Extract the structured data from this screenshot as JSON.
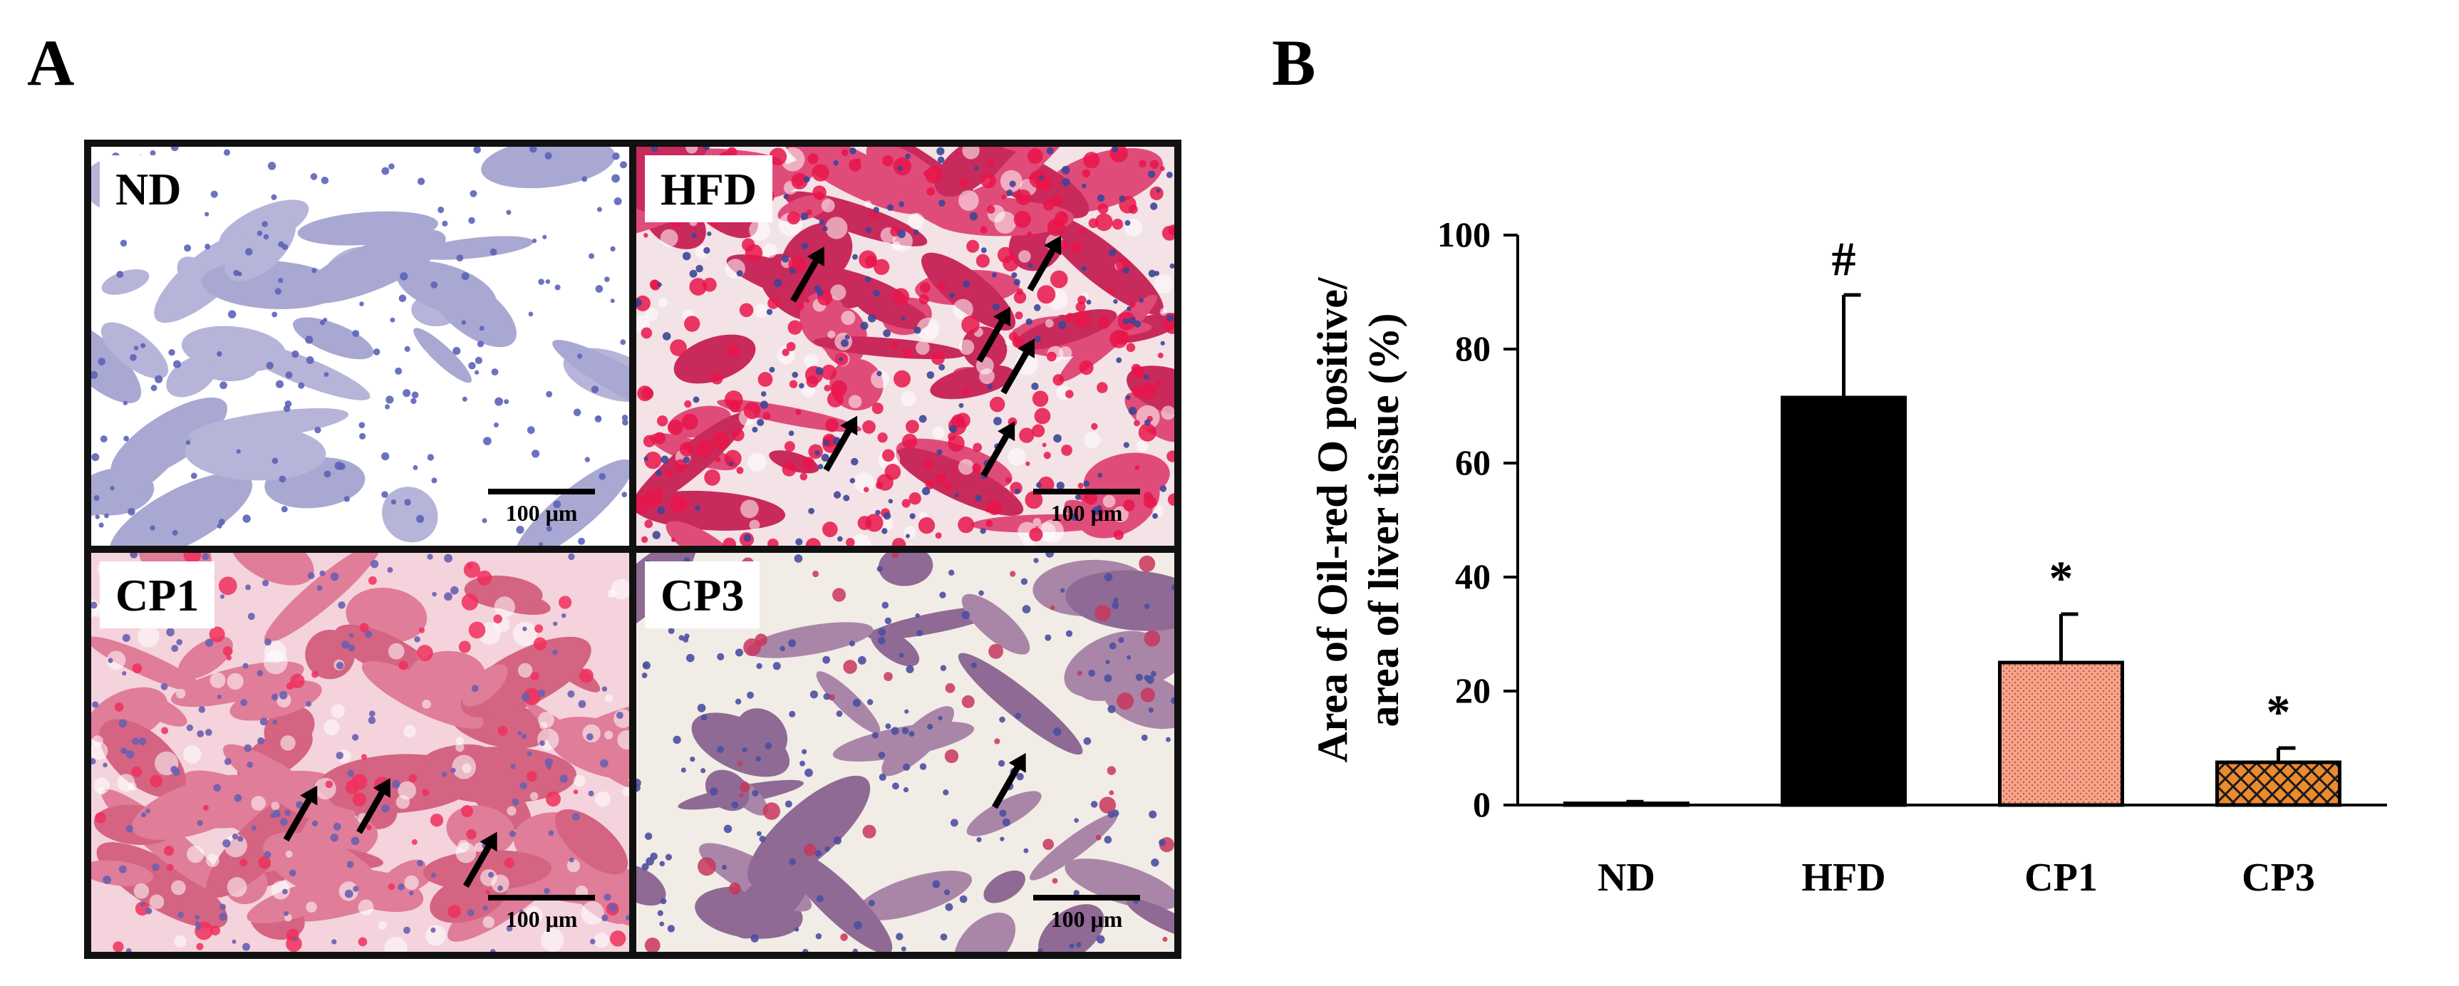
{
  "panel_letters": {
    "a": "A",
    "b": "B"
  },
  "micrographs": [
    {
      "label": "ND",
      "scale_text": "100 μm",
      "stain": "blue",
      "arrows": 0
    },
    {
      "label": "HFD",
      "scale_text": "100 μm",
      "stain": "heavy-red",
      "arrows": 6
    },
    {
      "label": "CP1",
      "scale_text": "100 μm",
      "stain": "red",
      "arrows": 3
    },
    {
      "label": "CP3",
      "scale_text": "100 μm",
      "stain": "purple",
      "arrows": 1
    }
  ],
  "chart_data": {
    "type": "bar",
    "categories": [
      "ND",
      "HFD",
      "CP1",
      "CP3"
    ],
    "values": [
      0.3,
      71.5,
      25,
      7.5
    ],
    "errors": [
      0.3,
      18,
      8.5,
      2.5
    ],
    "annotations": [
      "",
      "#",
      "*",
      "*"
    ],
    "fills": [
      "solid-black",
      "solid-black",
      "dotted-salmon",
      "crosshatch-orange"
    ],
    "colors": {
      "solid": "#000000",
      "cp1": "#f4a58c",
      "cp3_bg": "#ec8a2e",
      "cp3_hatch": "#1a1a1a"
    },
    "ylabel_line1": "Area of Oil-red O positive/",
    "ylabel_line2": "area of liver tissue (%)",
    "xlabel": "",
    "ylim": [
      0,
      100
    ],
    "yticks": [
      0,
      20,
      40,
      60,
      80,
      100
    ],
    "grid": false
  }
}
